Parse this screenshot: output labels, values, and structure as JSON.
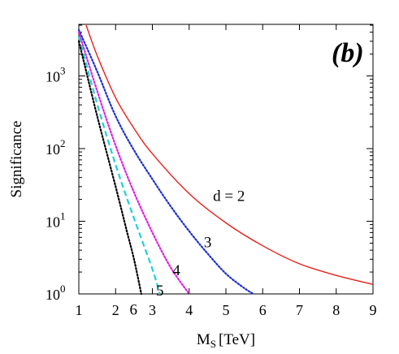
{
  "chart_data": {
    "type": "line",
    "panel_label": "(b)",
    "xlabel": "M",
    "xlabel_sub": "S",
    "xlabel_unit": "[TeV]",
    "ylabel": "Significance",
    "xlim": [
      1,
      9
    ],
    "ylim": [
      1,
      5000
    ],
    "yscale": "log",
    "x_ticks": [
      "1",
      "2",
      "3",
      "4",
      "5",
      "6",
      "7",
      "8",
      "9"
    ],
    "y_ticks": [
      {
        "base": "10",
        "exp": "0"
      },
      {
        "base": "10",
        "exp": "1"
      },
      {
        "base": "10",
        "exp": "2"
      },
      {
        "base": "10",
        "exp": "3"
      }
    ],
    "grid": false,
    "series": [
      {
        "name": "d = 2",
        "label_at": [
          4.65,
          19
        ],
        "color": "#e8201a",
        "style": "solid",
        "x": [
          1.2,
          1.5,
          2.0,
          2.5,
          3.0,
          4.0,
          5.0,
          6.0,
          7.0,
          8.0,
          9.0
        ],
        "y": [
          5000,
          1900,
          500,
          190,
          85,
          24,
          9.5,
          4.6,
          2.6,
          1.8,
          1.35
        ]
      },
      {
        "name": "3",
        "label_at": [
          4.4,
          4.4
        ],
        "color": "#1a2fd0",
        "style": "dotted",
        "x": [
          1.0,
          1.5,
          2.0,
          2.5,
          3.0,
          3.5,
          4.0,
          4.5,
          5.0,
          5.5,
          5.75
        ],
        "y": [
          4300,
          1150,
          280,
          95,
          38,
          16,
          7.3,
          3.6,
          1.9,
          1.2,
          1.0
        ]
      },
      {
        "name": "4",
        "label_at": [
          3.55,
          1.8
        ],
        "color": "#e020e0",
        "style": "dotted",
        "x": [
          1.0,
          1.5,
          2.0,
          2.5,
          3.0,
          3.5,
          4.0
        ],
        "y": [
          4000,
          620,
          110,
          25,
          7,
          2.3,
          1.0
        ]
      },
      {
        "name": "5",
        "label_at": [
          3.1,
          0.95
        ],
        "color": "#20d0d8",
        "style": "dashed",
        "x": [
          1.0,
          1.5,
          2.0,
          2.5,
          3.0,
          3.2
        ],
        "y": [
          3500,
          410,
          60,
          11,
          2.2,
          1.0
        ]
      },
      {
        "name": "6",
        "label_at": [
          2.38,
          0.52
        ],
        "color": "#000000",
        "style": "dotted",
        "x": [
          1.0,
          1.5,
          2.0,
          2.3,
          2.5,
          2.7
        ],
        "y": [
          3000,
          280,
          30,
          7.5,
          3,
          1.0
        ]
      }
    ]
  }
}
